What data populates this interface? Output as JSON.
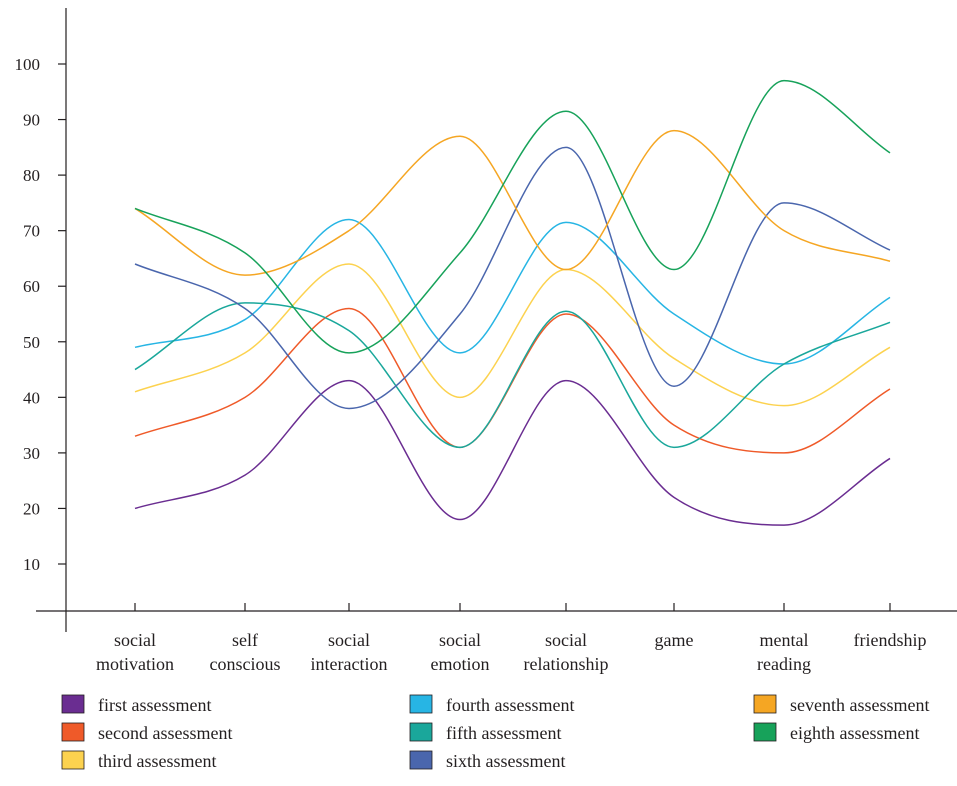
{
  "chart_data": {
    "type": "line",
    "title": "",
    "xlabel": "",
    "ylabel": "",
    "ylim": [
      0,
      105
    ],
    "yticks": [
      10,
      20,
      30,
      40,
      50,
      60,
      70,
      80,
      90,
      100
    ],
    "categories": [
      [
        "social",
        "motivation"
      ],
      [
        "self",
        "conscious"
      ],
      [
        "social",
        "interaction"
      ],
      [
        "social",
        "emotion"
      ],
      [
        "social",
        "relationship"
      ],
      [
        "game"
      ],
      [
        "mental",
        "reading"
      ],
      [
        "friendship"
      ]
    ],
    "grid": false,
    "legend_position": "bottom",
    "series": [
      {
        "name": "first assessment",
        "color": "#6a2d91",
        "values": [
          20,
          26,
          43,
          18,
          43,
          22,
          17,
          29
        ]
      },
      {
        "name": "second assessment",
        "color": "#ef5a29",
        "values": [
          33,
          40,
          56,
          31,
          55,
          35,
          30,
          41.5
        ]
      },
      {
        "name": "third assessment",
        "color": "#fcd24f",
        "values": [
          41,
          48,
          64,
          40,
          63,
          47,
          38.5,
          49
        ]
      },
      {
        "name": "fourth assessment",
        "color": "#27b5e4",
        "values": [
          49,
          54,
          72,
          48,
          71.5,
          55,
          46,
          58
        ]
      },
      {
        "name": "fifth assessment",
        "color": "#1aa79b",
        "values": [
          45,
          57,
          52,
          31,
          55.5,
          31,
          46,
          53.5
        ]
      },
      {
        "name": "sixth assessment",
        "color": "#4a66ad",
        "values": [
          64,
          56,
          38,
          55,
          85,
          42,
          75,
          66.5
        ]
      },
      {
        "name": "seventh assessment",
        "color": "#f5a623",
        "values": [
          74,
          62,
          70,
          87,
          63,
          88,
          70,
          64.5
        ]
      },
      {
        "name": "eighth assessment",
        "color": "#17a25a",
        "values": [
          74,
          66,
          48,
          66,
          91.5,
          63,
          97,
          84
        ]
      }
    ]
  }
}
